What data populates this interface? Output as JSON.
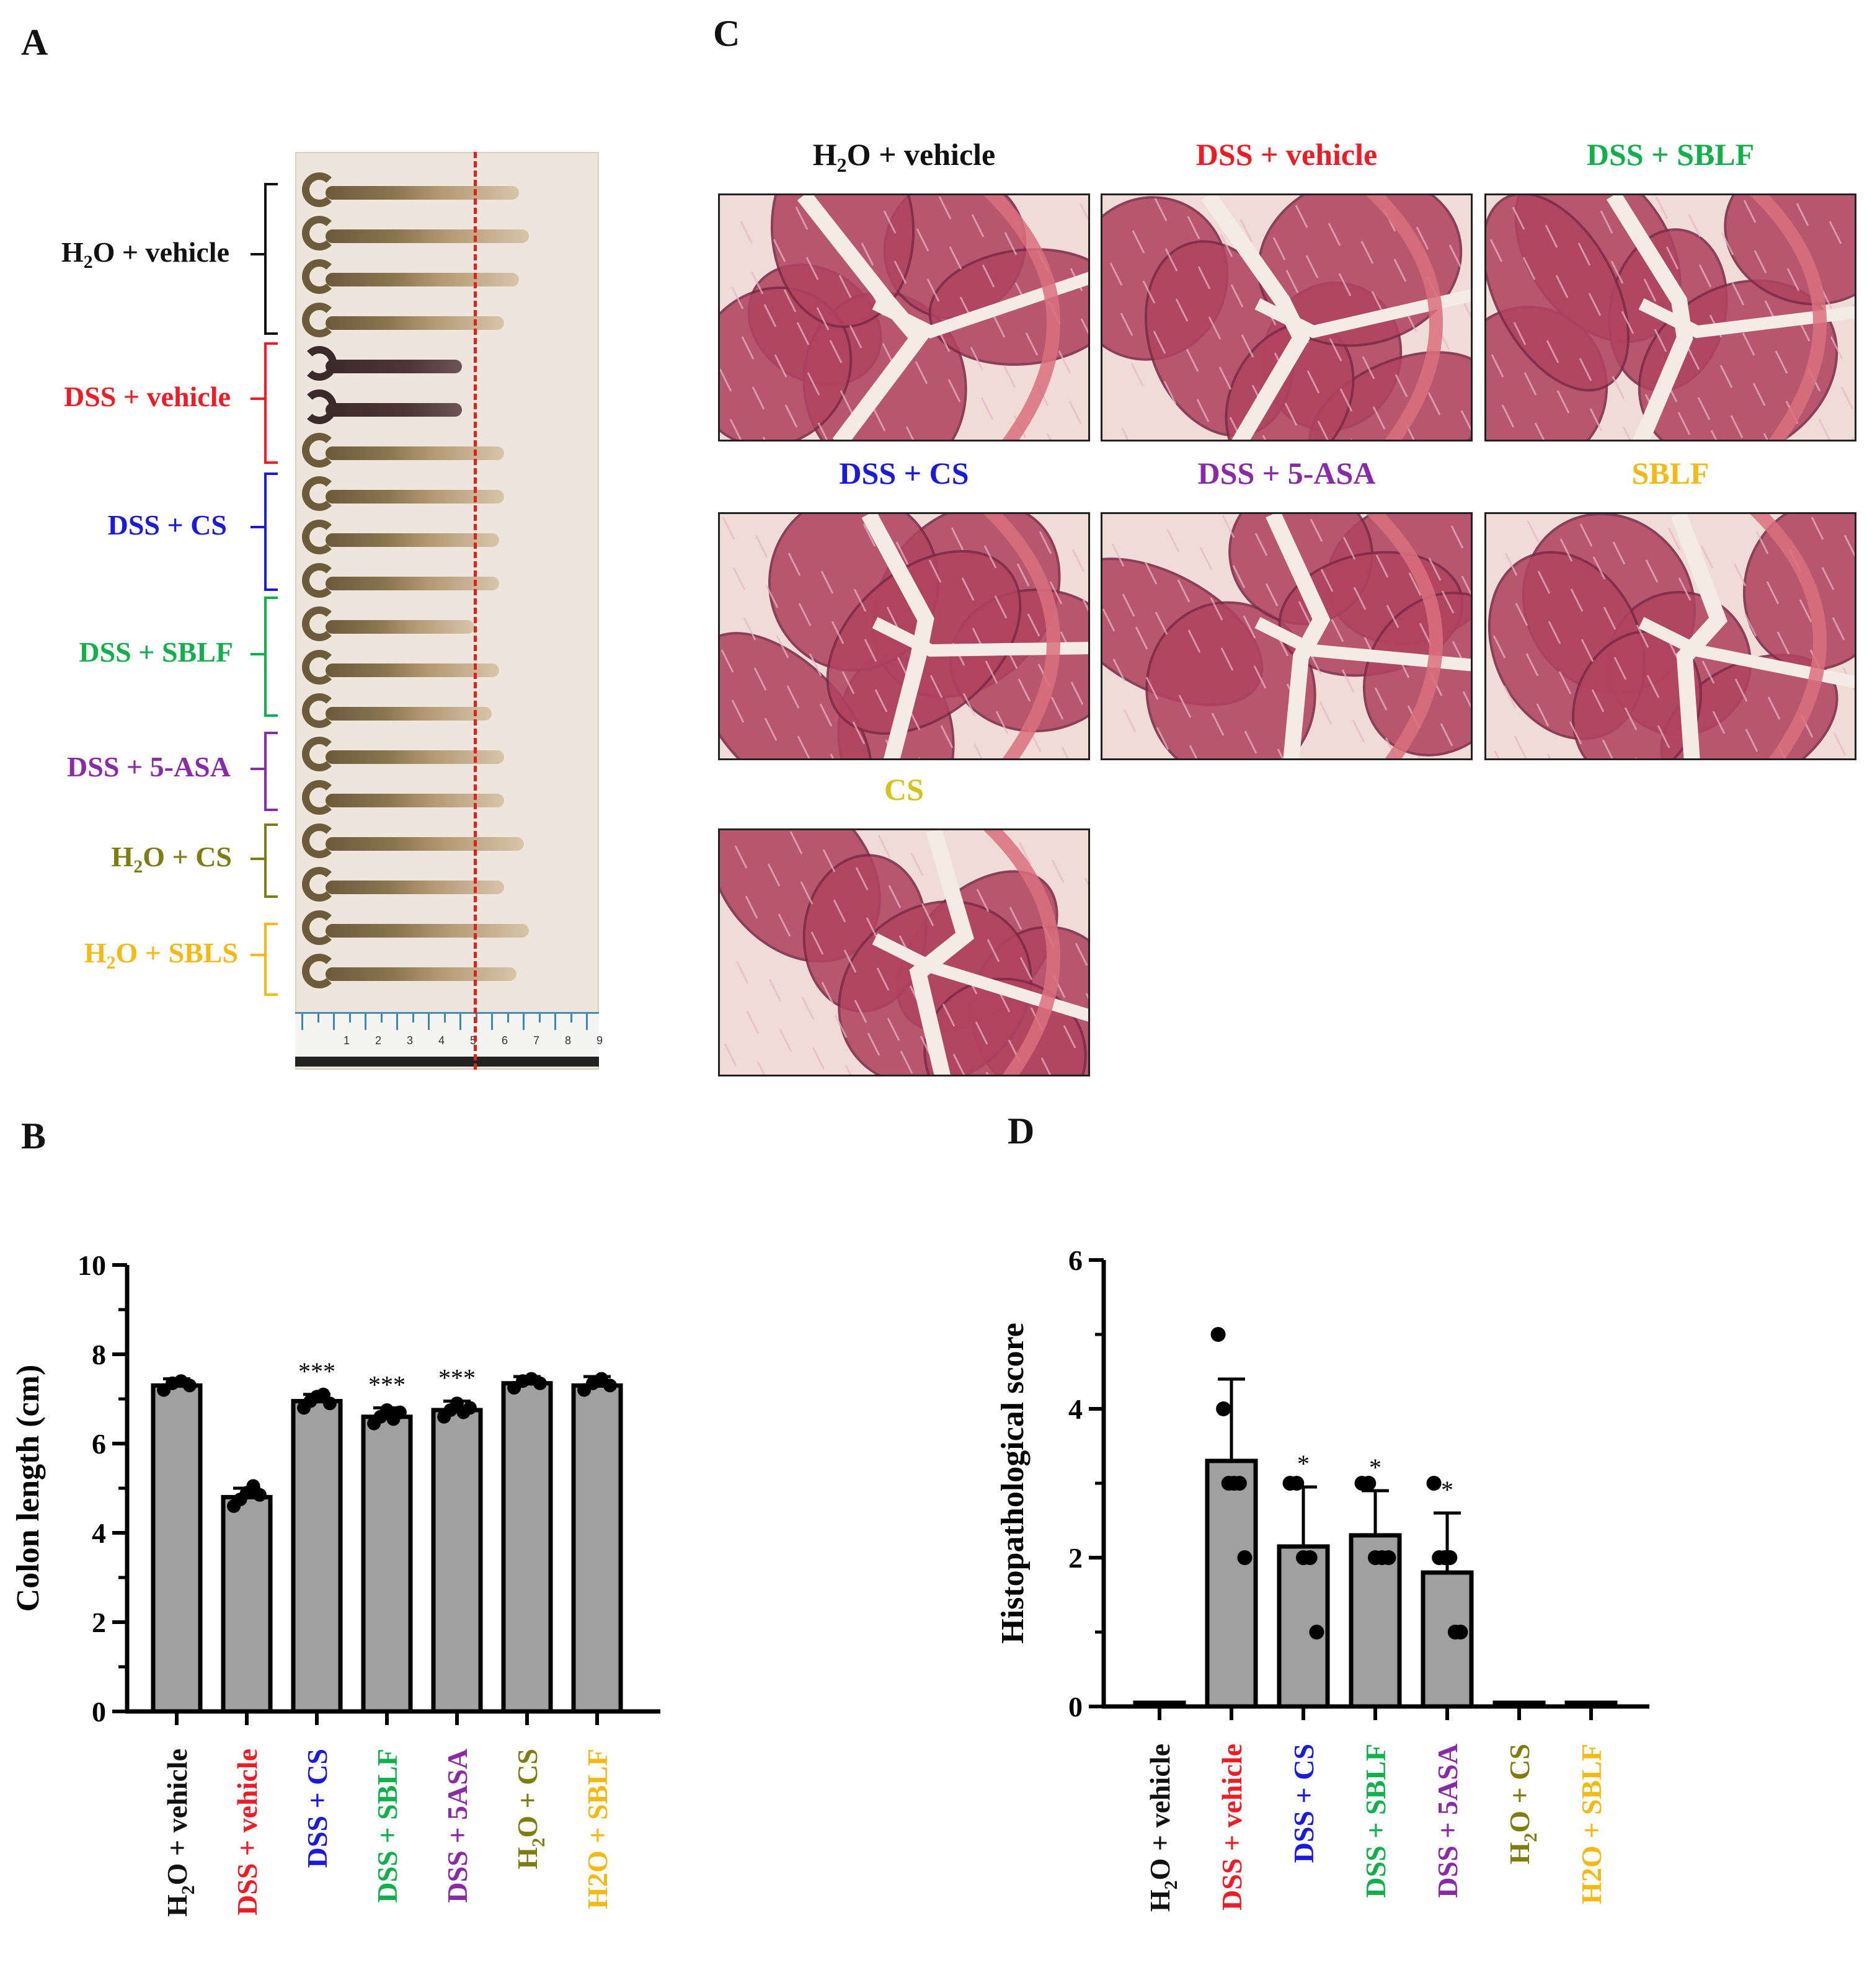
{
  "panels": {
    "a": "A",
    "b": "B",
    "c": "C",
    "d": "D"
  },
  "colors": {
    "h2o_vehicle": "#111111",
    "dss_vehicle": "#ee1c25",
    "dss_cs": "#1a1adc",
    "dss_sblf": "#12b04c",
    "dss_5asa": "#8a2aa8",
    "h2o_cs": "#7d7d12",
    "h2o_sbl": "#f5b914",
    "cs_title": "#d4c419",
    "bar_fill": "#a0a0a0"
  },
  "panel_a": {
    "groups": [
      {
        "pre": "H",
        "sub": "2",
        "post": "O + vehicle",
        "color_key": "h2o_vehicle"
      },
      {
        "pre": "DSS + vehicle",
        "sub": "",
        "post": "",
        "color_key": "dss_vehicle"
      },
      {
        "pre": "DSS + CS",
        "sub": "",
        "post": "",
        "color_key": "dss_cs"
      },
      {
        "pre": "DSS + SBLF",
        "sub": "",
        "post": "",
        "color_key": "dss_sblf"
      },
      {
        "pre": "DSS + 5-ASA",
        "sub": "",
        "post": "",
        "color_key": "dss_5asa"
      },
      {
        "pre": "H",
        "sub": "2",
        "post": "O + CS",
        "color_key": "h2o_cs"
      },
      {
        "pre": "H",
        "sub": "2",
        "post": "O + SBLS",
        "color_key": "h2o_sbl"
      }
    ],
    "ruler_numbers": [
      "1",
      "2",
      "3",
      "4",
      "5",
      "6",
      "7",
      "8",
      "9"
    ]
  },
  "panel_c": {
    "images": [
      {
        "pre": "H",
        "sub": "2",
        "post": "O + vehicle",
        "color_key": "h2o_vehicle"
      },
      {
        "pre": "DSS + vehicle",
        "sub": "",
        "post": "",
        "color_key": "dss_vehicle"
      },
      {
        "pre": "DSS + SBLF",
        "sub": "",
        "post": "",
        "color_key": "dss_sblf"
      },
      {
        "pre": "DSS + CS",
        "sub": "",
        "post": "",
        "color_key": "dss_cs"
      },
      {
        "pre": "DSS + 5-ASA",
        "sub": "",
        "post": "",
        "color_key": "dss_5asa"
      },
      {
        "pre": "SBLF",
        "sub": "",
        "post": "",
        "color_key": "h2o_sbl"
      },
      {
        "pre": "CS",
        "sub": "",
        "post": "",
        "color_key": "cs_title"
      }
    ]
  },
  "chart_data": [
    {
      "type": "bar",
      "panel": "B",
      "ylabel": "Colon length (cm)",
      "ylim": [
        0,
        10
      ],
      "yticks": [
        0,
        2,
        4,
        6,
        8,
        10
      ],
      "categories": [
        {
          "pre": "H",
          "sub": "2",
          "post": "O + vehicle",
          "color_key": "h2o_vehicle"
        },
        {
          "pre": "DSS + vehicle",
          "sub": "",
          "post": "",
          "color_key": "dss_vehicle"
        },
        {
          "pre": "DSS + CS",
          "sub": "",
          "post": "",
          "color_key": "dss_cs"
        },
        {
          "pre": "DSS + SBLF",
          "sub": "",
          "post": "",
          "color_key": "dss_sblf"
        },
        {
          "pre": "DSS + 5ASA",
          "sub": "",
          "post": "",
          "color_key": "dss_5asa"
        },
        {
          "pre": "H",
          "sub": "2",
          "post": "O + CS",
          "color_key": "h2o_cs"
        },
        {
          "pre": "H2O + SBLF",
          "sub": "",
          "post": "",
          "color_key": "h2o_sbl"
        }
      ],
      "values": [
        7.3,
        4.8,
        6.95,
        6.6,
        6.75,
        7.35,
        7.3
      ],
      "errors": [
        0.15,
        0.2,
        0.15,
        0.2,
        0.2,
        0.15,
        0.2
      ],
      "points": [
        [
          7.2,
          7.35,
          7.4,
          7.3
        ],
        [
          4.6,
          4.75,
          4.9,
          5.05,
          4.85
        ],
        [
          6.8,
          6.95,
          7.05,
          7.1,
          6.9
        ],
        [
          6.45,
          6.6,
          6.75,
          6.55,
          6.7
        ],
        [
          6.6,
          6.75,
          6.9,
          6.7,
          6.8
        ],
        [
          7.25,
          7.4,
          7.45,
          7.35
        ],
        [
          7.2,
          7.35,
          7.45,
          7.3
        ]
      ],
      "significance": [
        "",
        "",
        "***",
        "***",
        "***",
        "",
        ""
      ]
    },
    {
      "type": "bar",
      "panel": "D",
      "ylabel": "Histopathological score",
      "ylim": [
        0,
        6
      ],
      "yticks": [
        0,
        2,
        4,
        6
      ],
      "categories": [
        {
          "pre": "H",
          "sub": "2",
          "post": "O + vehicle",
          "color_key": "h2o_vehicle"
        },
        {
          "pre": "DSS + vehicle",
          "sub": "",
          "post": "",
          "color_key": "dss_vehicle"
        },
        {
          "pre": "DSS + CS",
          "sub": "",
          "post": "",
          "color_key": "dss_cs"
        },
        {
          "pre": "DSS + SBLF",
          "sub": "",
          "post": "",
          "color_key": "dss_sblf"
        },
        {
          "pre": "DSS + 5ASA",
          "sub": "",
          "post": "",
          "color_key": "dss_5asa"
        },
        {
          "pre": "H",
          "sub": "2",
          "post": "O + CS",
          "color_key": "h2o_cs"
        },
        {
          "pre": "H2O + SBLF",
          "sub": "",
          "post": "",
          "color_key": "h2o_sbl"
        }
      ],
      "values": [
        0.05,
        3.3,
        2.15,
        2.3,
        1.8,
        0.05,
        0.05
      ],
      "errors": [
        0,
        1.1,
        0.8,
        0.6,
        0.8,
        0,
        0
      ],
      "points": [
        [],
        [
          5,
          4,
          3,
          3,
          3,
          2
        ],
        [
          3,
          3,
          2,
          2,
          1
        ],
        [
          3,
          3,
          2,
          2,
          2
        ],
        [
          3,
          2,
          2,
          2,
          1,
          1
        ],
        [],
        []
      ],
      "significance": [
        "",
        "",
        "*",
        "*",
        "*",
        "",
        ""
      ]
    }
  ]
}
